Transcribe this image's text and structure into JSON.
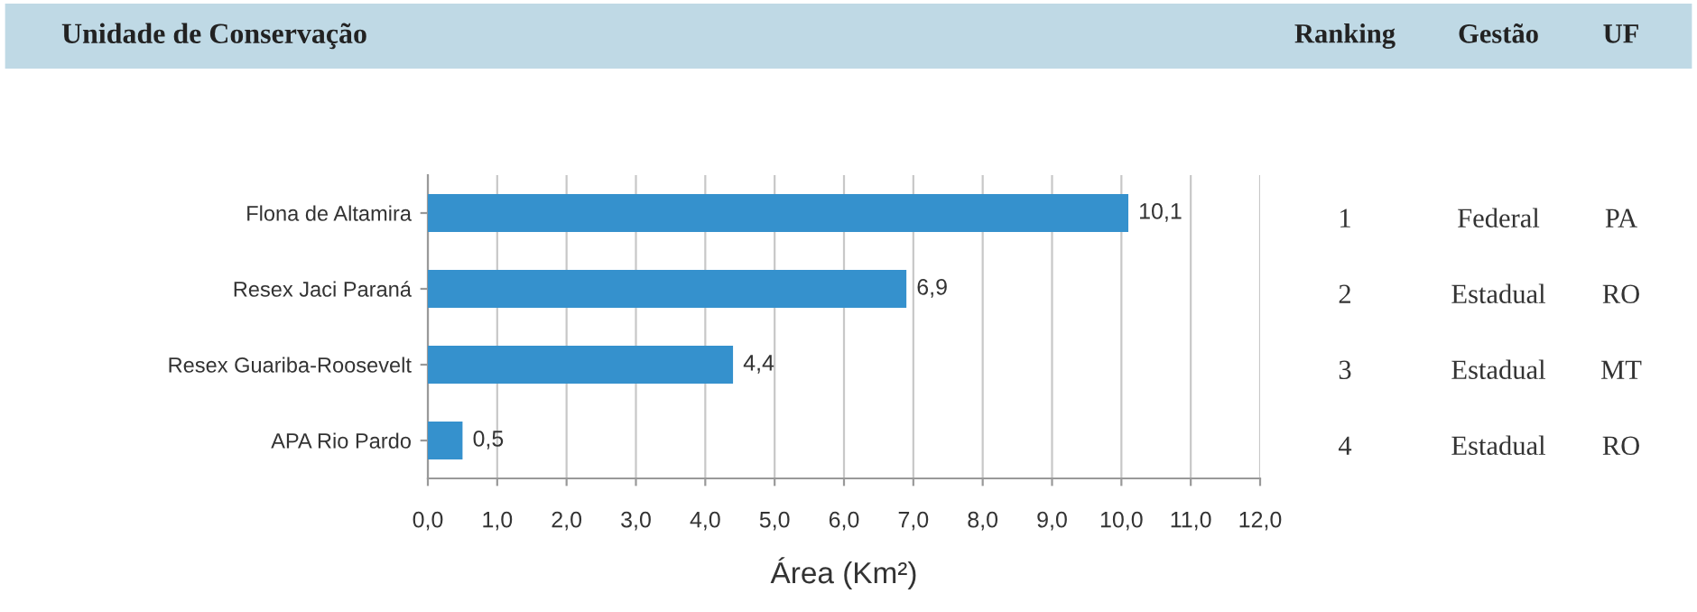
{
  "chart_data": {
    "type": "bar",
    "orientation": "horizontal",
    "title": "Unidade de Conservação",
    "categories": [
      "Flona de Altamira",
      "Resex Jaci Paraná",
      "Resex Guariba-Roosevelt",
      "APA Rio Pardo"
    ],
    "values": [
      10.1,
      6.9,
      4.4,
      0.5
    ],
    "value_labels": [
      "10,1",
      "6,9",
      "4,4",
      "0,5"
    ],
    "color": "#3591cd",
    "xlabel": "Área (Km²)",
    "xlim": [
      0,
      12
    ],
    "xticks": [
      {
        "value": 0,
        "label": "0,0"
      },
      {
        "value": 1,
        "label": "1,0"
      },
      {
        "value": 2,
        "label": "2,0"
      },
      {
        "value": 3,
        "label": "3,0"
      },
      {
        "value": 4,
        "label": "4,0"
      },
      {
        "value": 5,
        "label": "5,0"
      },
      {
        "value": 6,
        "label": "6,0"
      },
      {
        "value": 7,
        "label": "7,0"
      },
      {
        "value": 8,
        "label": "8,0"
      },
      {
        "value": 9,
        "label": "9,0"
      },
      {
        "value": 10,
        "label": "10,0"
      },
      {
        "value": 11,
        "label": "11,0"
      },
      {
        "value": 12,
        "label": "12,0"
      }
    ],
    "grid": "x",
    "annotations": [
      "Ranking",
      "Gestão",
      "UF",
      "1",
      "Federal",
      "PA",
      "2",
      "Estadual",
      "RO",
      "3",
      "Estadual",
      "MT",
      "4",
      "Estadual",
      "RO"
    ]
  }
}
